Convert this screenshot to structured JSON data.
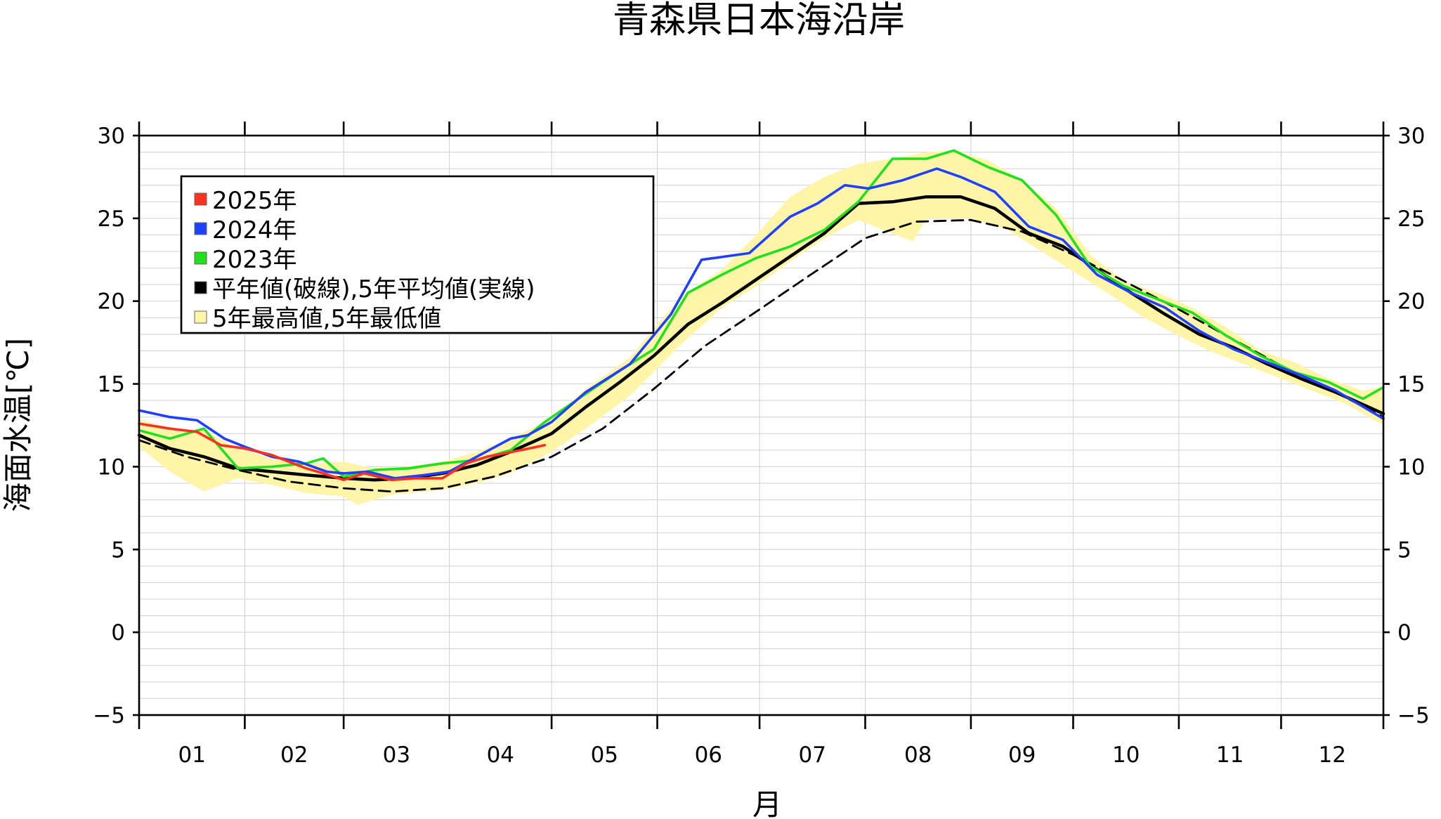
{
  "chart_data": {
    "type": "line",
    "title": "青森県日本海沿岸",
    "xlabel": "月",
    "ylabel": "海面水温[℃]",
    "x_unit": "day_of_year",
    "xlim": [
      1,
      366
    ],
    "ylim": [
      -5,
      30
    ],
    "y_ticks": [
      "−5",
      "0",
      "5",
      "10",
      "15",
      "20",
      "25",
      "30"
    ],
    "y_tick_values": [
      -5,
      0,
      5,
      10,
      15,
      20,
      25,
      30
    ],
    "months": [
      "01",
      "02",
      "03",
      "04",
      "05",
      "06",
      "07",
      "08",
      "09",
      "10",
      "11",
      "12"
    ],
    "month_starts": [
      1,
      32,
      61,
      92,
      122,
      153,
      183,
      214,
      245,
      275,
      306,
      336,
      366
    ],
    "grid": true,
    "legend_position": "top-left",
    "legend": [
      {
        "label": "2025年",
        "color": "#ff3020"
      },
      {
        "label": "2024年",
        "color": "#2040ff"
      },
      {
        "label": "2023年",
        "color": "#20e020"
      },
      {
        "label": "平年値(破線),5年平均値(実線)",
        "color": "#000000"
      },
      {
        "label": "5年最高値,5年最低値",
        "color": "#fff5a8"
      }
    ],
    "series": [
      {
        "name": "2025年",
        "color": "#ff3020",
        "x": [
          1,
          10,
          18,
          25,
          32,
          40,
          45,
          50,
          55,
          61,
          67,
          75,
          82,
          90,
          97,
          103,
          108,
          113,
          120
        ],
        "y": [
          12.6,
          12.3,
          12.1,
          11.3,
          11.1,
          10.7,
          10.3,
          9.9,
          9.6,
          9.2,
          9.6,
          9.2,
          9.3,
          9.3,
          10.2,
          10.6,
          10.8,
          11.0,
          11.3
        ]
      },
      {
        "name": "2024年",
        "color": "#2040ff",
        "x": [
          1,
          10,
          18,
          26,
          32,
          40,
          48,
          56,
          61,
          68,
          76,
          85,
          92,
          100,
          110,
          115,
          122,
          132,
          145,
          157,
          166,
          180,
          192,
          200,
          208,
          215,
          225,
          235,
          242,
          252,
          262,
          272,
          282,
          292,
          302,
          312,
          322,
          332,
          342,
          352,
          366
        ],
        "y": [
          13.4,
          13.0,
          12.8,
          11.7,
          11.2,
          10.6,
          10.3,
          9.7,
          9.6,
          9.7,
          9.3,
          9.5,
          9.7,
          10.6,
          11.7,
          11.9,
          12.7,
          14.5,
          16.2,
          19.2,
          22.5,
          22.9,
          25.1,
          25.9,
          27.0,
          26.8,
          27.3,
          28.0,
          27.5,
          26.6,
          24.5,
          23.7,
          21.6,
          20.5,
          19.6,
          18.2,
          17.1,
          16.3,
          15.5,
          14.6,
          12.9
        ]
      },
      {
        "name": "2023年",
        "color": "#20e020",
        "x": [
          1,
          10,
          20,
          30,
          40,
          50,
          55,
          61,
          70,
          80,
          90,
          100,
          110,
          120,
          132,
          142,
          152,
          162,
          172,
          182,
          192,
          202,
          212,
          222,
          232,
          240,
          250,
          260,
          270,
          280,
          290,
          300,
          310,
          320,
          330,
          340,
          350,
          360,
          366
        ],
        "y": [
          12.2,
          11.7,
          12.3,
          9.9,
          10.0,
          10.2,
          10.5,
          9.4,
          9.8,
          9.9,
          10.2,
          10.4,
          11.0,
          12.7,
          14.4,
          15.8,
          17.1,
          20.5,
          21.6,
          22.6,
          23.3,
          24.3,
          26.0,
          28.6,
          28.6,
          29.1,
          28.1,
          27.3,
          25.2,
          22.1,
          20.9,
          20.1,
          19.3,
          17.9,
          16.7,
          15.7,
          15.1,
          14.1,
          14.8
        ]
      },
      {
        "name": "5年平均値",
        "color": "#000000",
        "x": [
          1,
          10,
          20,
          30,
          40,
          50,
          61,
          70,
          80,
          90,
          100,
          110,
          122,
          132,
          142,
          152,
          162,
          172,
          182,
          192,
          202,
          212,
          222,
          232,
          242,
          252,
          262,
          272,
          282,
          292,
          302,
          312,
          322,
          332,
          342,
          352,
          366
        ],
        "y": [
          11.9,
          11.1,
          10.6,
          9.9,
          9.7,
          9.5,
          9.3,
          9.2,
          9.3,
          9.6,
          10.1,
          10.9,
          12.0,
          13.6,
          15.1,
          16.7,
          18.6,
          19.9,
          21.3,
          22.7,
          24.1,
          25.9,
          26.0,
          26.3,
          26.3,
          25.6,
          24.1,
          23.3,
          21.9,
          20.5,
          19.2,
          18.0,
          17.2,
          16.2,
          15.3,
          14.5,
          13.2
        ]
      },
      {
        "name": "平年値",
        "color": "#000000",
        "dashed": true,
        "x": [
          1,
          15,
          30,
          45,
          61,
          75,
          90,
          105,
          122,
          137,
          152,
          167,
          183,
          198,
          214,
          229,
          245,
          260,
          275,
          290,
          306,
          321,
          336,
          351,
          366
        ],
        "y": [
          11.6,
          10.6,
          9.8,
          9.1,
          8.7,
          8.5,
          8.7,
          9.4,
          10.6,
          12.3,
          14.7,
          17.3,
          19.5,
          21.6,
          23.8,
          24.8,
          24.9,
          24.2,
          22.8,
          21.2,
          19.5,
          17.8,
          16.1,
          14.6,
          13.0
        ]
      },
      {
        "name": "5年最高値",
        "color": "#fff5a8",
        "x": [
          1,
          10,
          20,
          30,
          40,
          50,
          61,
          70,
          80,
          90,
          100,
          110,
          122,
          132,
          145,
          160,
          172,
          182,
          192,
          202,
          212,
          222,
          232,
          240,
          250,
          260,
          270,
          280,
          290,
          300,
          310,
          320,
          330,
          340,
          350,
          360,
          366
        ],
        "y": [
          12.9,
          12.3,
          12.2,
          11.1,
          10.5,
          10.2,
          10.3,
          9.9,
          10.0,
          10.3,
          10.9,
          11.7,
          12.9,
          14.7,
          16.6,
          20.3,
          21.9,
          24.0,
          26.3,
          27.5,
          28.3,
          28.6,
          29.0,
          29.1,
          28.5,
          27.3,
          25.6,
          22.8,
          21.2,
          20.5,
          19.6,
          18.4,
          17.0,
          16.3,
          15.3,
          14.6,
          14.8
        ]
      },
      {
        "name": "5年最低値",
        "color": "#fff5a8",
        "x": [
          1,
          10,
          20,
          30,
          40,
          50,
          61,
          65,
          75,
          90,
          100,
          110,
          122,
          132,
          145,
          160,
          172,
          182,
          192,
          202,
          212,
          228,
          232,
          245,
          255,
          265,
          275,
          285,
          295,
          305,
          315,
          325,
          335,
          345,
          355,
          366
        ],
        "y": [
          11.2,
          9.7,
          8.5,
          9.3,
          8.9,
          8.4,
          8.2,
          7.7,
          8.3,
          8.6,
          9.0,
          9.6,
          10.9,
          12.3,
          14.3,
          17.4,
          19.6,
          20.9,
          22.4,
          23.8,
          24.9,
          23.6,
          25.0,
          25.0,
          24.4,
          23.1,
          21.8,
          20.5,
          19.1,
          18.0,
          17.0,
          16.2,
          15.4,
          14.6,
          13.8,
          12.5
        ]
      }
    ]
  }
}
